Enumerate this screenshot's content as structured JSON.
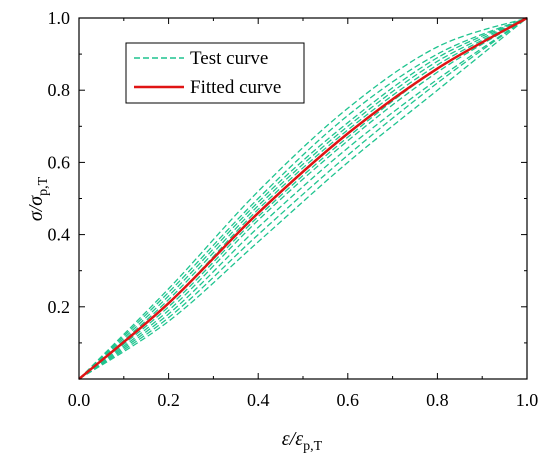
{
  "chart_data": {
    "type": "line",
    "xlabel_main": "ε/ε",
    "xlabel_sub": "p,T",
    "ylabel_main": "σ/σ",
    "ylabel_sub": "p,T",
    "xlim": [
      0.0,
      1.0
    ],
    "ylim": [
      0.0,
      1.0
    ],
    "x_ticks": [
      "0.0",
      "0.2",
      "0.4",
      "0.6",
      "0.8",
      "1.0"
    ],
    "y_ticks": [
      "0.2",
      "0.4",
      "0.6",
      "0.8",
      "1.0"
    ],
    "grid": false,
    "legend_position": "top-left",
    "colors": {
      "test": "#1fc48f",
      "fitted": "#e01414"
    },
    "series": [
      {
        "name": "Test curve",
        "style": "dashed",
        "curves": [
          {
            "x": [
              0,
              0.2,
              0.4,
              0.6,
              0.8,
              1.0
            ],
            "y": [
              0,
              0.25,
              0.52,
              0.75,
              0.92,
              1.0
            ]
          },
          {
            "x": [
              0,
              0.2,
              0.4,
              0.6,
              0.8,
              1.0
            ],
            "y": [
              0,
              0.24,
              0.5,
              0.73,
              0.9,
              1.0
            ]
          },
          {
            "x": [
              0,
              0.2,
              0.4,
              0.6,
              0.8,
              1.0
            ],
            "y": [
              0,
              0.23,
              0.49,
              0.71,
              0.89,
              1.0
            ]
          },
          {
            "x": [
              0,
              0.2,
              0.4,
              0.6,
              0.8,
              1.0
            ],
            "y": [
              0,
              0.22,
              0.48,
              0.7,
              0.88,
              1.0
            ]
          },
          {
            "x": [
              0,
              0.2,
              0.4,
              0.6,
              0.8,
              1.0
            ],
            "y": [
              0,
              0.21,
              0.47,
              0.69,
              0.87,
              1.0
            ]
          },
          {
            "x": [
              0,
              0.2,
              0.4,
              0.6,
              0.8,
              1.0
            ],
            "y": [
              0,
              0.2,
              0.45,
              0.67,
              0.86,
              1.0
            ]
          },
          {
            "x": [
              0,
              0.2,
              0.4,
              0.6,
              0.8,
              1.0
            ],
            "y": [
              0,
              0.19,
              0.44,
              0.66,
              0.85,
              1.0
            ]
          },
          {
            "x": [
              0,
              0.2,
              0.4,
              0.6,
              0.8,
              1.0
            ],
            "y": [
              0,
              0.18,
              0.42,
              0.64,
              0.83,
              1.0
            ]
          },
          {
            "x": [
              0,
              0.2,
              0.4,
              0.6,
              0.8,
              1.0
            ],
            "y": [
              0,
              0.17,
              0.4,
              0.62,
              0.82,
              1.0
            ]
          },
          {
            "x": [
              0,
              0.2,
              0.4,
              0.6,
              0.8,
              1.0
            ],
            "y": [
              0,
              0.16,
              0.38,
              0.6,
              0.8,
              1.0
            ]
          }
        ]
      },
      {
        "name": "Fitted curve",
        "style": "solid",
        "x": [
          0,
          0.2,
          0.4,
          0.6,
          0.8,
          1.0
        ],
        "y": [
          0,
          0.21,
          0.46,
          0.68,
          0.86,
          1.0
        ]
      }
    ]
  }
}
